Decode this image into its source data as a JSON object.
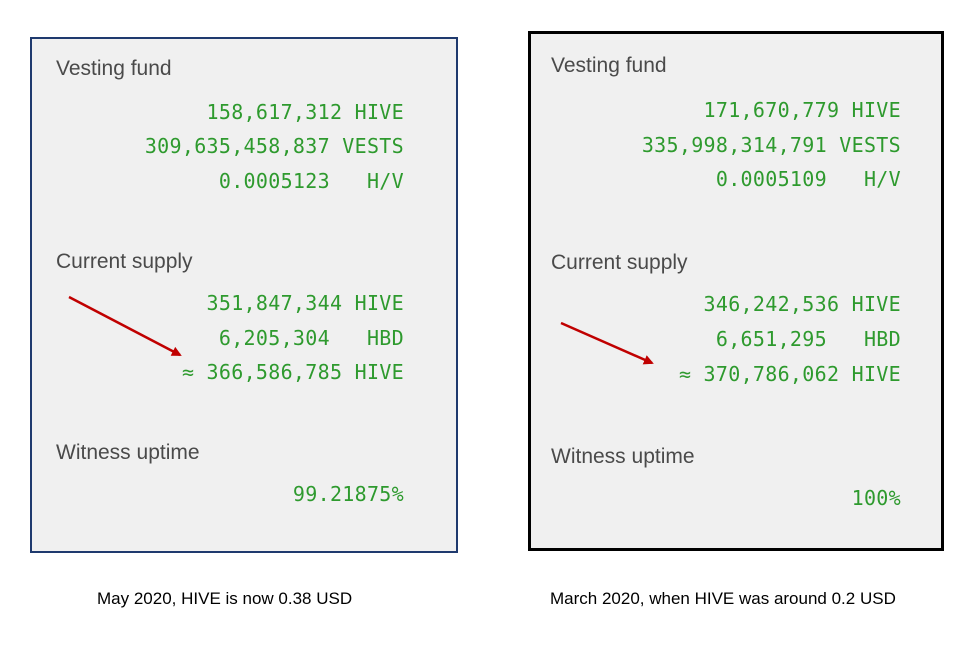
{
  "left_panel": {
    "vesting_fund_label": "Vesting fund",
    "vesting_hive": "158,617,312 HIVE",
    "vesting_vests": "309,635,458,837 VESTS",
    "hive_per_vest": "0.0005123   H/V",
    "current_supply_label": "Current supply",
    "supply_hive": "351,847,344 HIVE",
    "supply_hbd": "6,205,304   HBD",
    "supply_virtual": "≈ 366,586,785 HIVE",
    "witness_uptime_label": "Witness uptime",
    "witness_uptime": "99.21875%",
    "caption": "May 2020, HIVE is now 0.38 USD"
  },
  "right_panel": {
    "vesting_fund_label": "Vesting fund",
    "vesting_hive": "171,670,779 HIVE",
    "vesting_vests": "335,998,314,791 VESTS",
    "hive_per_vest": "0.0005109   H/V",
    "current_supply_label": "Current supply",
    "supply_hive": "346,242,536 HIVE",
    "supply_hbd": "6,651,295   HBD",
    "supply_virtual": "≈ 370,786,062 HIVE",
    "witness_uptime_label": "Witness uptime",
    "witness_uptime": "100%",
    "caption": "March 2020, when HIVE was around 0.2 USD"
  },
  "colors": {
    "value_green": "#2e9a2e",
    "label_gray": "#4a4a4a",
    "arrow_red": "#c00000",
    "panel_bg": "#f0f0f0",
    "left_border": "#1f3a6e",
    "right_border": "#000000"
  }
}
